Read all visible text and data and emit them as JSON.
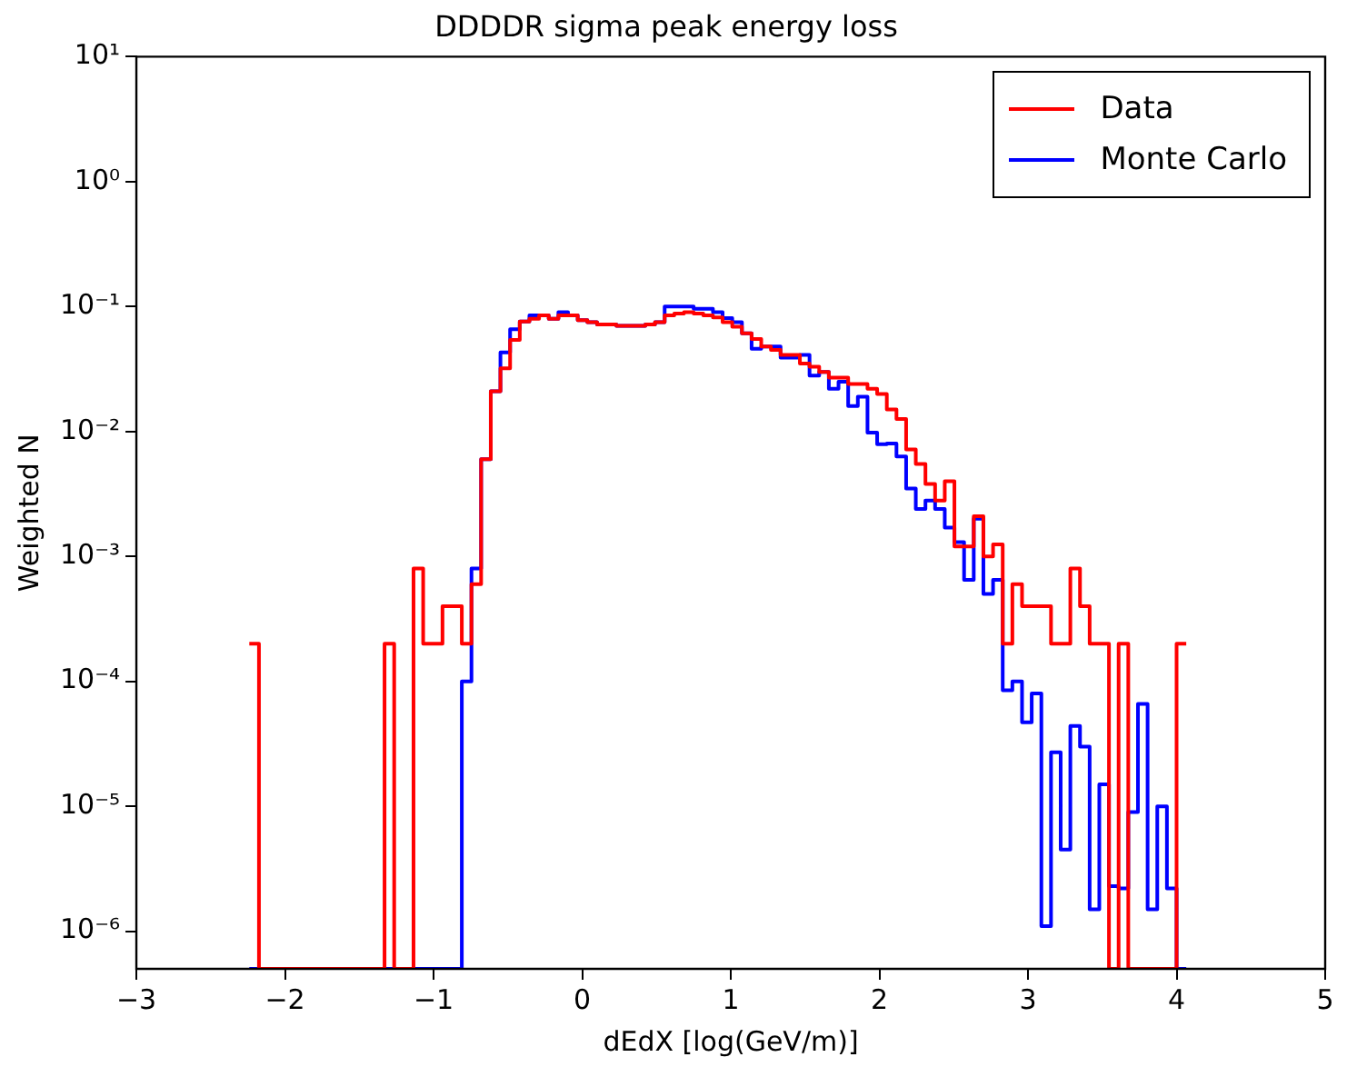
{
  "chart_data": {
    "type": "histogram",
    "title": "DDDDR sigma peak energy loss",
    "xlabel": "dEdX [log(GeV/m)]",
    "ylabel": "Weighted N",
    "bins": [
      -2.24,
      -2.175,
      -2.11,
      -2.045,
      -1.98,
      -1.915,
      -1.85,
      -1.785,
      -1.72,
      -1.655,
      -1.59,
      -1.525,
      -1.46,
      -1.395,
      -1.33,
      -1.265,
      -1.2,
      -1.135,
      -1.07,
      -1.005,
      -0.94,
      -0.875,
      -0.81,
      -0.745,
      -0.68,
      -0.615,
      -0.55,
      -0.485,
      -0.42,
      -0.355,
      -0.29,
      -0.225,
      -0.16,
      -0.095,
      -0.03,
      0.035,
      0.1,
      0.165,
      0.23,
      0.295,
      0.36,
      0.425,
      0.49,
      0.555,
      0.62,
      0.685,
      0.75,
      0.815,
      0.88,
      0.945,
      1.01,
      1.075,
      1.14,
      1.205,
      1.27,
      1.335,
      1.4,
      1.465,
      1.53,
      1.595,
      1.66,
      1.725,
      1.79,
      1.855,
      1.92,
      1.985,
      2.05,
      2.115,
      2.18,
      2.245,
      2.31,
      2.375,
      2.44,
      2.505,
      2.57,
      2.635,
      2.7,
      2.765,
      2.83,
      2.895,
      2.96,
      3.025,
      3.09,
      3.155,
      3.22,
      3.285,
      3.35,
      3.415,
      3.48,
      3.545,
      3.61,
      3.675,
      3.74,
      3.805,
      3.87,
      3.935,
      4.0,
      4.065
    ],
    "series": [
      {
        "name": "Data",
        "color": "#ff0000",
        "values": [
          0.0002,
          null,
          null,
          null,
          null,
          null,
          null,
          null,
          null,
          null,
          null,
          null,
          null,
          null,
          0.0002,
          null,
          null,
          0.0008,
          0.0002,
          0.0002,
          0.0004,
          0.0004,
          0.0002,
          0.0006,
          0.006,
          0.021,
          0.032,
          0.054,
          0.076,
          0.08,
          0.085,
          0.08,
          0.085,
          0.085,
          0.078,
          0.075,
          0.072,
          0.072,
          0.07,
          0.07,
          0.07,
          0.072,
          0.075,
          0.085,
          0.088,
          0.09,
          0.088,
          0.085,
          0.082,
          0.075,
          0.069,
          0.061,
          0.055,
          0.048,
          0.045,
          0.041,
          0.041,
          0.035,
          0.033,
          0.03,
          0.027,
          0.027,
          0.024,
          0.024,
          0.022,
          0.02,
          0.015,
          0.0126,
          0.0072,
          0.0055,
          0.0038,
          0.0028,
          0.004,
          0.0012,
          0.0012,
          0.0021,
          0.001,
          0.00125,
          0.0002,
          0.0006,
          0.0004,
          0.0004,
          0.0004,
          0.0002,
          0.0002,
          0.0008,
          0.0004,
          0.0002,
          0.0002,
          null,
          0.0002,
          null,
          null,
          null,
          null,
          null,
          0.0002
        ]
      },
      {
        "name": "Monte Carlo",
        "color": "#0000ff",
        "values": [
          null,
          null,
          null,
          null,
          null,
          null,
          null,
          null,
          null,
          null,
          null,
          null,
          null,
          null,
          null,
          null,
          null,
          null,
          null,
          null,
          null,
          null,
          0.0001,
          0.0008,
          0.006,
          0.021,
          0.043,
          0.066,
          0.076,
          0.085,
          0.085,
          0.08,
          0.09,
          0.085,
          0.078,
          0.075,
          0.072,
          0.072,
          0.07,
          0.07,
          0.07,
          0.072,
          0.075,
          0.1,
          0.1,
          0.1,
          0.096,
          0.096,
          0.09,
          0.081,
          0.075,
          0.061,
          0.046,
          0.048,
          0.048,
          0.039,
          0.039,
          0.041,
          0.028,
          0.03,
          0.022,
          0.025,
          0.016,
          0.019,
          0.0098,
          0.0079,
          0.008,
          0.0063,
          0.0035,
          0.0024,
          0.0028,
          0.0024,
          0.0017,
          0.0013,
          0.00065,
          0.002,
          0.0005,
          0.00065,
          8.5e-05,
          0.0001,
          4.7e-05,
          8e-05,
          1.1e-06,
          2.7e-05,
          4.5e-06,
          4.4e-05,
          3e-05,
          1.5e-06,
          1.5e-05,
          2.3e-06,
          2.2e-06,
          9e-06,
          6.6e-05,
          1.5e-06,
          1e-05,
          2.2e-06,
          null
        ]
      }
    ],
    "xlim": [
      -3,
      5
    ],
    "xticks": [
      {
        "value": -3,
        "label": "−3"
      },
      {
        "value": -2,
        "label": "−2"
      },
      {
        "value": -1,
        "label": "−1"
      },
      0,
      1,
      2,
      3,
      4,
      5
    ],
    "ylim": [
      5e-07,
      10
    ],
    "yticks": [
      {
        "value": 1e-06,
        "label": "10⁻⁶"
      },
      {
        "value": 1e-05,
        "label": "10⁻⁵"
      },
      {
        "value": 0.0001,
        "label": "10⁻⁴"
      },
      {
        "value": 0.001,
        "label": "10⁻³"
      },
      {
        "value": 0.01,
        "label": "10⁻²"
      },
      {
        "value": 0.1,
        "label": "10⁻¹"
      },
      {
        "value": 1,
        "label": "10⁰"
      },
      {
        "value": 10,
        "label": "10¹"
      }
    ],
    "log": "y",
    "grid": false,
    "legend": "top right"
  }
}
